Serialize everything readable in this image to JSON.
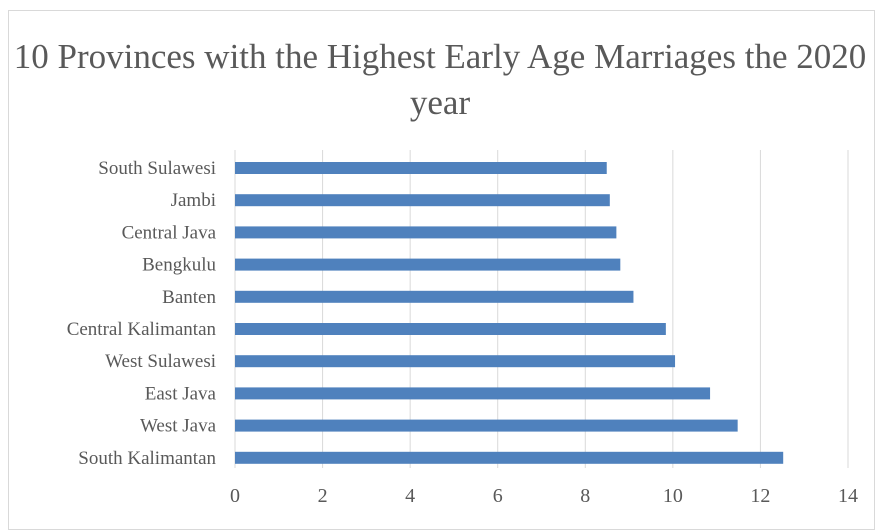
{
  "chart_data": {
    "type": "bar",
    "orientation": "horizontal",
    "title": "10 Provinces with the Highest Early Age Marriages the 2020 year",
    "xlabel": "",
    "ylabel": "",
    "categories": [
      "South Sulawesi",
      "Jambi",
      "Central Java",
      "Bengkulu",
      "Banten",
      "Central Kalimantan",
      "West Sulawesi",
      "East Java",
      "West Java",
      "South Kalimantan"
    ],
    "values": [
      8.49,
      8.56,
      8.71,
      8.8,
      9.1,
      9.84,
      10.05,
      10.85,
      11.48,
      12.52
    ],
    "xlim": [
      0,
      14
    ],
    "xticks": [
      "0",
      "2",
      "4",
      "6",
      "8",
      "10",
      "12",
      "14"
    ],
    "grid": true,
    "bar_color": "#4f81bd",
    "grid_color": "#d9d9d9"
  }
}
